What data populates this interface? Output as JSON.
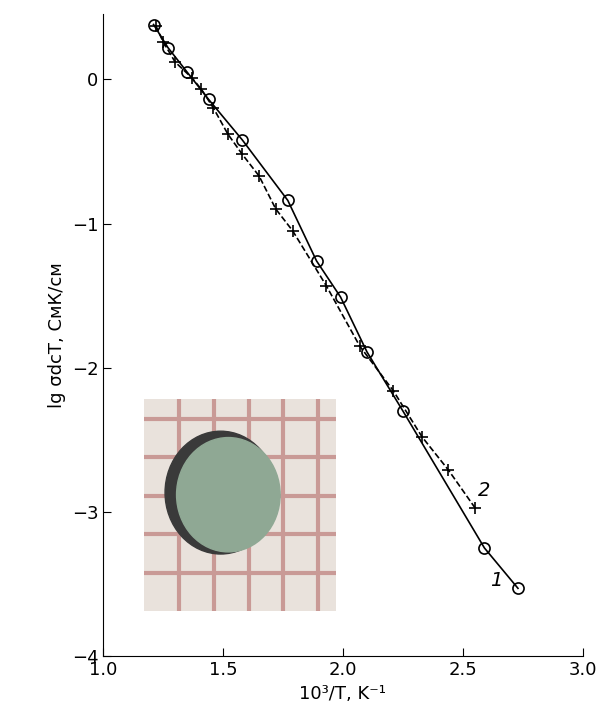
{
  "chart_data": {
    "type": "line",
    "xlabel": "10³/T, K⁻¹",
    "ylabel": "lg σdcT, СмК/см",
    "xlim": [
      1.0,
      3.0
    ],
    "xticks": [
      1.0,
      1.5,
      2.0,
      2.5,
      3.0
    ],
    "ylim": [
      -4,
      0.45
    ],
    "yticks": [
      {
        "value": -4,
        "label": "−4"
      },
      {
        "value": -3,
        "label": "−3"
      },
      {
        "value": -2,
        "label": "−2"
      },
      {
        "value": -1,
        "label": "−1"
      },
      0
    ],
    "grid": false,
    "series": [
      {
        "name": "1",
        "color": "#000000",
        "marker": "circle",
        "line_style": "solid",
        "x": [
          1.21,
          1.27,
          1.35,
          1.44,
          1.58,
          1.77,
          1.89,
          1.99,
          2.1,
          2.25,
          2.59,
          2.73
        ],
        "values": [
          0.38,
          0.22,
          0.05,
          -0.14,
          -0.42,
          -0.84,
          -1.26,
          -1.51,
          -1.89,
          -2.3,
          -3.25,
          -3.53
        ]
      },
      {
        "name": "2",
        "color": "#000000",
        "marker": "plus",
        "line_style": "dashed",
        "x": [
          1.22,
          1.25,
          1.3,
          1.37,
          1.41,
          1.46,
          1.52,
          1.58,
          1.65,
          1.72,
          1.79,
          1.93,
          2.07,
          2.21,
          2.33,
          2.44,
          2.55
        ],
        "values": [
          0.37,
          0.26,
          0.12,
          0.01,
          -0.07,
          -0.2,
          -0.38,
          -0.52,
          -0.67,
          -0.9,
          -1.05,
          -1.43,
          -1.85,
          -2.16,
          -2.48,
          -2.71,
          -2.97
        ]
      }
    ]
  }
}
